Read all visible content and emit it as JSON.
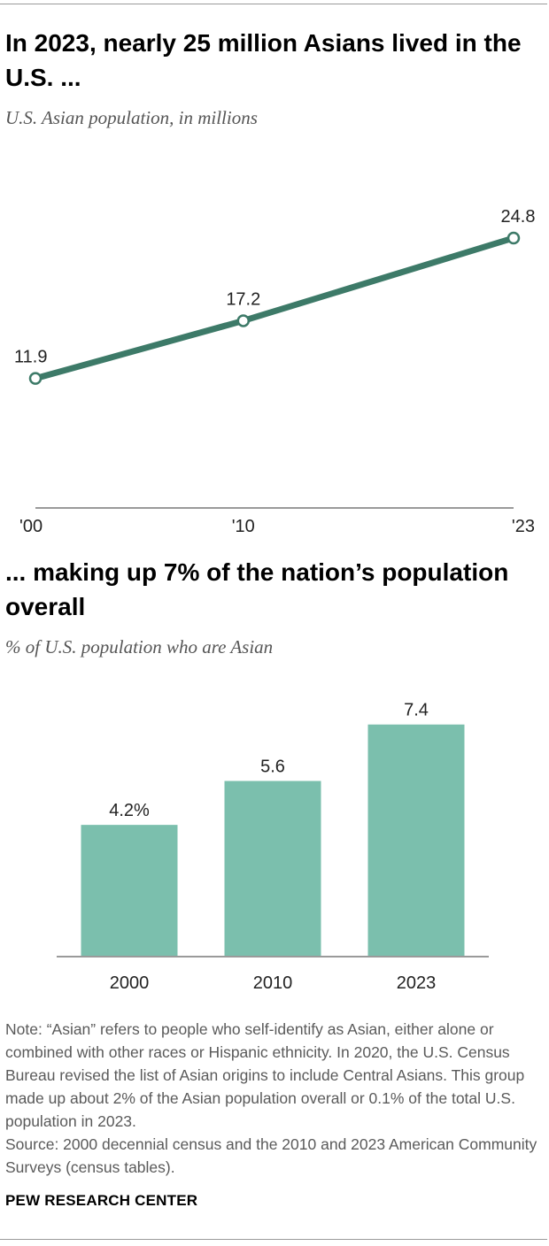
{
  "colors": {
    "line": "#3d7a68",
    "bar": "#7bbfad",
    "axis": "#9a9a9a",
    "text": "#222222",
    "note": "#5a5a5a"
  },
  "chart_data": [
    {
      "type": "line",
      "title": "In 2023, nearly 25 million Asians lived in the U.S. ...",
      "subtitle": "U.S. Asian population, in millions",
      "x": [
        2000,
        2010,
        2023
      ],
      "tick_labels": [
        "'00",
        "'10",
        "'23"
      ],
      "series": [
        {
          "values": [
            11.9,
            17.2,
            24.8
          ],
          "labels": [
            "11.9",
            "17.2",
            "24.8"
          ]
        }
      ],
      "ylim": [
        0,
        30
      ],
      "grid": false,
      "legend": "none"
    },
    {
      "type": "bar",
      "title": "... making up 7% of the nation’s population overall",
      "subtitle": "% of U.S. population who are Asian",
      "categories": [
        "2000",
        "2010",
        "2023"
      ],
      "values": [
        4.2,
        5.6,
        7.4
      ],
      "value_labels": [
        "4.2%",
        "5.6",
        "7.4"
      ],
      "ylim": [
        0,
        9
      ],
      "grid": false,
      "legend": "none"
    }
  ],
  "note": "Note: “Asian” refers to people who self-identify as Asian, either alone or combined with other races or Hispanic ethnicity. In 2020, the U.S. Census Bureau revised the list of Asian origins to include Central Asians. This group made up about 2% of the Asian population overall or 0.1% of the total U.S. population in 2023.",
  "source": "Source: 2000 decennial census and the 2010 and 2023 American Community Surveys (census tables).",
  "brand": "PEW RESEARCH CENTER"
}
